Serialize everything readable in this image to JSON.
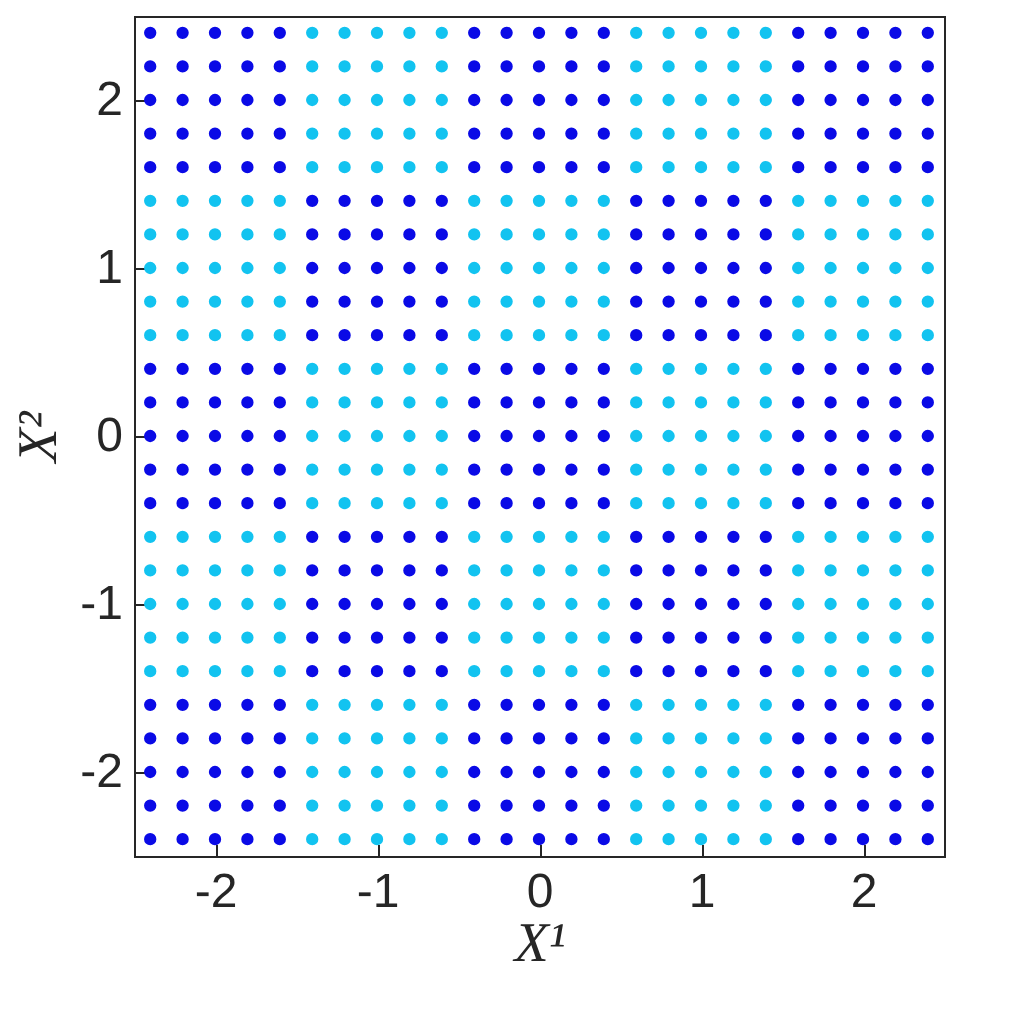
{
  "chart_data": {
    "type": "scatter",
    "xlabel": "X¹",
    "ylabel": "X²",
    "xlim": [
      -2.5,
      2.5
    ],
    "ylim": [
      -2.5,
      2.5
    ],
    "xticks": [
      -2,
      -1,
      0,
      1,
      2
    ],
    "yticks": [
      -2,
      -1,
      0,
      1,
      2
    ],
    "grid": false,
    "marker": "circle",
    "series": [
      {
        "color": "#0a0ae6",
        "x": [
          -2.4,
          -2.2,
          -2,
          -1.8,
          -1.6,
          -0.4,
          -0.2,
          0,
          0.2,
          0.4,
          1.6,
          1.8,
          2,
          2.2,
          2.4,
          -2.4,
          -2.2,
          -2,
          -1.8,
          -1.6,
          -0.4,
          -0.2,
          0,
          0.2,
          0.4,
          1.6,
          1.8,
          2,
          2.2,
          2.4,
          -2.4,
          -2.2,
          -2,
          -1.8,
          -1.6,
          -0.4,
          -0.2,
          0,
          0.2,
          0.4,
          1.6,
          1.8,
          2,
          2.2,
          2.4,
          -2.4,
          -2.2,
          -2,
          -1.8,
          -1.6,
          -0.4,
          -0.2,
          0,
          0.2,
          0.4,
          1.6,
          1.8,
          2,
          2.2,
          2.4,
          -2.4,
          -2.2,
          -2,
          -1.8,
          -1.6,
          -0.4,
          -0.2,
          0,
          0.2,
          0.4,
          1.6,
          1.8,
          2,
          2.2,
          2.4,
          -1.4,
          -1.2,
          -1,
          -0.8,
          -0.6,
          0.6,
          0.8,
          1,
          1.2,
          1.4,
          -1.4,
          -1.2,
          -1,
          -0.8,
          -0.6,
          0.6,
          0.8,
          1,
          1.2,
          1.4,
          -1.4,
          -1.2,
          -1,
          -0.8,
          -0.6,
          0.6,
          0.8,
          1,
          1.2,
          1.4,
          -1.4,
          -1.2,
          -1,
          -0.8,
          -0.6,
          0.6,
          0.8,
          1,
          1.2,
          1.4,
          -1.4,
          -1.2,
          -1,
          -0.8,
          -0.6,
          0.6,
          0.8,
          1,
          1.2,
          1.4,
          -2.4,
          -2.2,
          -2,
          -1.8,
          -1.6,
          -0.4,
          -0.2,
          0,
          0.2,
          0.4,
          1.6,
          1.8,
          2,
          2.2,
          2.4,
          -2.4,
          -2.2,
          -2,
          -1.8,
          -1.6,
          -0.4,
          -0.2,
          0,
          0.2,
          0.4,
          1.6,
          1.8,
          2,
          2.2,
          2.4,
          -2.4,
          -2.2,
          -2,
          -1.8,
          -1.6,
          -0.4,
          -0.2,
          0,
          0.2,
          0.4,
          1.6,
          1.8,
          2,
          2.2,
          2.4,
          -2.4,
          -2.2,
          -2,
          -1.8,
          -1.6,
          -0.4,
          -0.2,
          0,
          0.2,
          0.4,
          1.6,
          1.8,
          2,
          2.2,
          2.4,
          -2.4,
          -2.2,
          -2,
          -1.8,
          -1.6,
          -0.4,
          -0.2,
          0,
          0.2,
          0.4,
          1.6,
          1.8,
          2,
          2.2,
          2.4,
          -1.4,
          -1.2,
          -1,
          -0.8,
          -0.6,
          0.6,
          0.8,
          1,
          1.2,
          1.4,
          -1.4,
          -1.2,
          -1,
          -0.8,
          -0.6,
          0.6,
          0.8,
          1,
          1.2,
          1.4,
          -1.4,
          -1.2,
          -1,
          -0.8,
          -0.6,
          0.6,
          0.8,
          1,
          1.2,
          1.4,
          -1.4,
          -1.2,
          -1,
          -0.8,
          -0.6,
          0.6,
          0.8,
          1,
          1.2,
          1.4,
          -1.4,
          -1.2,
          -1,
          -0.8,
          -0.6,
          0.6,
          0.8,
          1,
          1.2,
          1.4,
          -2.4,
          -2.2,
          -2,
          -1.8,
          -1.6,
          -0.4,
          -0.2,
          0,
          0.2,
          0.4,
          1.6,
          1.8,
          2,
          2.2,
          2.4,
          -2.4,
          -2.2,
          -2,
          -1.8,
          -1.6,
          -0.4,
          -0.2,
          0,
          0.2,
          0.4,
          1.6,
          1.8,
          2,
          2.2,
          2.4,
          -2.4,
          -2.2,
          -2,
          -1.8,
          -1.6,
          -0.4,
          -0.2,
          0,
          0.2,
          0.4,
          1.6,
          1.8,
          2,
          2.2,
          2.4,
          -2.4,
          -2.2,
          -2,
          -1.8,
          -1.6,
          -0.4,
          -0.2,
          0,
          0.2,
          0.4,
          1.6,
          1.8,
          2,
          2.2,
          2.4,
          -2.4,
          -2.2,
          -2,
          -1.8,
          -1.6,
          -0.4,
          -0.2,
          0,
          0.2,
          0.4,
          1.6,
          1.8,
          2,
          2.2,
          2.4
        ],
        "values": [
          2.4,
          2.4,
          2.4,
          2.4,
          2.4,
          2.4,
          2.4,
          2.4,
          2.4,
          2.4,
          2.4,
          2.4,
          2.4,
          2.4,
          2.4,
          2.2,
          2.2,
          2.2,
          2.2,
          2.2,
          2.2,
          2.2,
          2.2,
          2.2,
          2.2,
          2.2,
          2.2,
          2.2,
          2.2,
          2.2,
          2,
          2,
          2,
          2,
          2,
          2,
          2,
          2,
          2,
          2,
          2,
          2,
          2,
          2,
          2,
          1.8,
          1.8,
          1.8,
          1.8,
          1.8,
          1.8,
          1.8,
          1.8,
          1.8,
          1.8,
          1.8,
          1.8,
          1.8,
          1.8,
          1.8,
          1.6,
          1.6,
          1.6,
          1.6,
          1.6,
          1.6,
          1.6,
          1.6,
          1.6,
          1.6,
          1.6,
          1.6,
          1.6,
          1.6,
          1.6,
          1.4,
          1.4,
          1.4,
          1.4,
          1.4,
          1.4,
          1.4,
          1.4,
          1.4,
          1.4,
          1.2,
          1.2,
          1.2,
          1.2,
          1.2,
          1.2,
          1.2,
          1.2,
          1.2,
          1.2,
          1,
          1,
          1,
          1,
          1,
          1,
          1,
          1,
          1,
          1,
          0.8,
          0.8,
          0.8,
          0.8,
          0.8,
          0.8,
          0.8,
          0.8,
          0.8,
          0.8,
          0.6,
          0.6,
          0.6,
          0.6,
          0.6,
          0.6,
          0.6,
          0.6,
          0.6,
          0.6,
          0.4,
          0.4,
          0.4,
          0.4,
          0.4,
          0.4,
          0.4,
          0.4,
          0.4,
          0.4,
          0.4,
          0.4,
          0.4,
          0.4,
          0.4,
          0.2,
          0.2,
          0.2,
          0.2,
          0.2,
          0.2,
          0.2,
          0.2,
          0.2,
          0.2,
          0.2,
          0.2,
          0.2,
          0.2,
          0.2,
          0,
          0,
          0,
          0,
          0,
          0,
          0,
          0,
          0,
          0,
          0,
          0,
          0,
          0,
          0,
          -0.2,
          -0.2,
          -0.2,
          -0.2,
          -0.2,
          -0.2,
          -0.2,
          -0.2,
          -0.2,
          -0.2,
          -0.2,
          -0.2,
          -0.2,
          -0.2,
          -0.2,
          -0.4,
          -0.4,
          -0.4,
          -0.4,
          -0.4,
          -0.4,
          -0.4,
          -0.4,
          -0.4,
          -0.4,
          -0.4,
          -0.4,
          -0.4,
          -0.4,
          -0.4,
          -0.6,
          -0.6,
          -0.6,
          -0.6,
          -0.6,
          -0.6,
          -0.6,
          -0.6,
          -0.6,
          -0.6,
          -0.8,
          -0.8,
          -0.8,
          -0.8,
          -0.8,
          -0.8,
          -0.8,
          -0.8,
          -0.8,
          -0.8,
          -1,
          -1,
          -1,
          -1,
          -1,
          -1,
          -1,
          -1,
          -1,
          -1,
          -1.2,
          -1.2,
          -1.2,
          -1.2,
          -1.2,
          -1.2,
          -1.2,
          -1.2,
          -1.2,
          -1.2,
          -1.4,
          -1.4,
          -1.4,
          -1.4,
          -1.4,
          -1.4,
          -1.4,
          -1.4,
          -1.4,
          -1.4,
          -1.6,
          -1.6,
          -1.6,
          -1.6,
          -1.6,
          -1.6,
          -1.6,
          -1.6,
          -1.6,
          -1.6,
          -1.6,
          -1.6,
          -1.6,
          -1.6,
          -1.6,
          -1.8,
          -1.8,
          -1.8,
          -1.8,
          -1.8,
          -1.8,
          -1.8,
          -1.8,
          -1.8,
          -1.8,
          -1.8,
          -1.8,
          -1.8,
          -1.8,
          -1.8,
          -2,
          -2,
          -2,
          -2,
          -2,
          -2,
          -2,
          -2,
          -2,
          -2,
          -2,
          -2,
          -2,
          -2,
          -2,
          -2.2,
          -2.2,
          -2.2,
          -2.2,
          -2.2,
          -2.2,
          -2.2,
          -2.2,
          -2.2,
          -2.2,
          -2.2,
          -2.2,
          -2.2,
          -2.2,
          -2.2,
          -2.4,
          -2.4,
          -2.4,
          -2.4,
          -2.4,
          -2.4,
          -2.4,
          -2.4,
          -2.4,
          -2.4,
          -2.4,
          -2.4,
          -2.4,
          -2.4,
          -2.4
        ]
      },
      {
        "color": "#12c3f0",
        "x": [
          -1.4,
          -1.2,
          -1,
          -0.8,
          -0.6,
          0.6,
          0.8,
          1,
          1.2,
          1.4,
          -1.4,
          -1.2,
          -1,
          -0.8,
          -0.6,
          0.6,
          0.8,
          1,
          1.2,
          1.4,
          -1.4,
          -1.2,
          -1,
          -0.8,
          -0.6,
          0.6,
          0.8,
          1,
          1.2,
          1.4,
          -1.4,
          -1.2,
          -1,
          -0.8,
          -0.6,
          0.6,
          0.8,
          1,
          1.2,
          1.4,
          -1.4,
          -1.2,
          -1,
          -0.8,
          -0.6,
          0.6,
          0.8,
          1,
          1.2,
          1.4,
          -2.4,
          -2.2,
          -2,
          -1.8,
          -1.6,
          -0.4,
          -0.2,
          0,
          0.2,
          0.4,
          1.6,
          1.8,
          2,
          2.2,
          2.4,
          -2.4,
          -2.2,
          -2,
          -1.8,
          -1.6,
          -0.4,
          -0.2,
          0,
          0.2,
          0.4,
          1.6,
          1.8,
          2,
          2.2,
          2.4,
          -2.4,
          -2.2,
          -2,
          -1.8,
          -1.6,
          -0.4,
          -0.2,
          0,
          0.2,
          0.4,
          1.6,
          1.8,
          2,
          2.2,
          2.4,
          -2.4,
          -2.2,
          -2,
          -1.8,
          -1.6,
          -0.4,
          -0.2,
          0,
          0.2,
          0.4,
          1.6,
          1.8,
          2,
          2.2,
          2.4,
          -2.4,
          -2.2,
          -2,
          -1.8,
          -1.6,
          -0.4,
          -0.2,
          0,
          0.2,
          0.4,
          1.6,
          1.8,
          2,
          2.2,
          2.4,
          -1.4,
          -1.2,
          -1,
          -0.8,
          -0.6,
          0.6,
          0.8,
          1,
          1.2,
          1.4,
          -1.4,
          -1.2,
          -1,
          -0.8,
          -0.6,
          0.6,
          0.8,
          1,
          1.2,
          1.4,
          -1.4,
          -1.2,
          -1,
          -0.8,
          -0.6,
          0.6,
          0.8,
          1,
          1.2,
          1.4,
          -1.4,
          -1.2,
          -1,
          -0.8,
          -0.6,
          0.6,
          0.8,
          1,
          1.2,
          1.4,
          -1.4,
          -1.2,
          -1,
          -0.8,
          -0.6,
          0.6,
          0.8,
          1,
          1.2,
          1.4,
          -2.4,
          -2.2,
          -2,
          -1.8,
          -1.6,
          -0.4,
          -0.2,
          0,
          0.2,
          0.4,
          1.6,
          1.8,
          2,
          2.2,
          2.4,
          -2.4,
          -2.2,
          -2,
          -1.8,
          -1.6,
          -0.4,
          -0.2,
          0,
          0.2,
          0.4,
          1.6,
          1.8,
          2,
          2.2,
          2.4,
          -2.4,
          -2.2,
          -2,
          -1.8,
          -1.6,
          -0.4,
          -0.2,
          0,
          0.2,
          0.4,
          1.6,
          1.8,
          2,
          2.2,
          2.4,
          -2.4,
          -2.2,
          -2,
          -1.8,
          -1.6,
          -0.4,
          -0.2,
          0,
          0.2,
          0.4,
          1.6,
          1.8,
          2,
          2.2,
          2.4,
          -2.4,
          -2.2,
          -2,
          -1.8,
          -1.6,
          -0.4,
          -0.2,
          0,
          0.2,
          0.4,
          1.6,
          1.8,
          2,
          2.2,
          2.4,
          -1.4,
          -1.2,
          -1,
          -0.8,
          -0.6,
          0.6,
          0.8,
          1,
          1.2,
          1.4,
          -1.4,
          -1.2,
          -1,
          -0.8,
          -0.6,
          0.6,
          0.8,
          1,
          1.2,
          1.4,
          -1.4,
          -1.2,
          -1,
          -0.8,
          -0.6,
          0.6,
          0.8,
          1,
          1.2,
          1.4,
          -1.4,
          -1.2,
          -1,
          -0.8,
          -0.6,
          0.6,
          0.8,
          1,
          1.2,
          1.4,
          -1.4,
          -1.2,
          -1,
          -0.8,
          -0.6,
          0.6,
          0.8,
          1,
          1.2,
          1.4
        ],
        "values": [
          2.4,
          2.4,
          2.4,
          2.4,
          2.4,
          2.4,
          2.4,
          2.4,
          2.4,
          2.4,
          2.2,
          2.2,
          2.2,
          2.2,
          2.2,
          2.2,
          2.2,
          2.2,
          2.2,
          2.2,
          2,
          2,
          2,
          2,
          2,
          2,
          2,
          2,
          2,
          2,
          1.8,
          1.8,
          1.8,
          1.8,
          1.8,
          1.8,
          1.8,
          1.8,
          1.8,
          1.8,
          1.6,
          1.6,
          1.6,
          1.6,
          1.6,
          1.6,
          1.6,
          1.6,
          1.6,
          1.6,
          1.4,
          1.4,
          1.4,
          1.4,
          1.4,
          1.4,
          1.4,
          1.4,
          1.4,
          1.4,
          1.4,
          1.4,
          1.4,
          1.4,
          1.4,
          1.2,
          1.2,
          1.2,
          1.2,
          1.2,
          1.2,
          1.2,
          1.2,
          1.2,
          1.2,
          1.2,
          1.2,
          1.2,
          1.2,
          1.2,
          1,
          1,
          1,
          1,
          1,
          1,
          1,
          1,
          1,
          1,
          1,
          1,
          1,
          1,
          1,
          0.8,
          0.8,
          0.8,
          0.8,
          0.8,
          0.8,
          0.8,
          0.8,
          0.8,
          0.8,
          0.8,
          0.8,
          0.8,
          0.8,
          0.8,
          0.6,
          0.6,
          0.6,
          0.6,
          0.6,
          0.6,
          0.6,
          0.6,
          0.6,
          0.6,
          0.6,
          0.6,
          0.6,
          0.6,
          0.6,
          0.4,
          0.4,
          0.4,
          0.4,
          0.4,
          0.4,
          0.4,
          0.4,
          0.4,
          0.4,
          0.2,
          0.2,
          0.2,
          0.2,
          0.2,
          0.2,
          0.2,
          0.2,
          0.2,
          0.2,
          0,
          0,
          0,
          0,
          0,
          0,
          0,
          0,
          0,
          0,
          -0.2,
          -0.2,
          -0.2,
          -0.2,
          -0.2,
          -0.2,
          -0.2,
          -0.2,
          -0.2,
          -0.2,
          -0.4,
          -0.4,
          -0.4,
          -0.4,
          -0.4,
          -0.4,
          -0.4,
          -0.4,
          -0.4,
          -0.4,
          -0.6,
          -0.6,
          -0.6,
          -0.6,
          -0.6,
          -0.6,
          -0.6,
          -0.6,
          -0.6,
          -0.6,
          -0.6,
          -0.6,
          -0.6,
          -0.6,
          -0.6,
          -0.8,
          -0.8,
          -0.8,
          -0.8,
          -0.8,
          -0.8,
          -0.8,
          -0.8,
          -0.8,
          -0.8,
          -0.8,
          -0.8,
          -0.8,
          -0.8,
          -0.8,
          -1,
          -1,
          -1,
          -1,
          -1,
          -1,
          -1,
          -1,
          -1,
          -1,
          -1,
          -1,
          -1,
          -1,
          -1,
          -1.2,
          -1.2,
          -1.2,
          -1.2,
          -1.2,
          -1.2,
          -1.2,
          -1.2,
          -1.2,
          -1.2,
          -1.2,
          -1.2,
          -1.2,
          -1.2,
          -1.2,
          -1.4,
          -1.4,
          -1.4,
          -1.4,
          -1.4,
          -1.4,
          -1.4,
          -1.4,
          -1.4,
          -1.4,
          -1.4,
          -1.4,
          -1.4,
          -1.4,
          -1.4,
          -1.6,
          -1.6,
          -1.6,
          -1.6,
          -1.6,
          -1.6,
          -1.6,
          -1.6,
          -1.6,
          -1.6,
          -1.8,
          -1.8,
          -1.8,
          -1.8,
          -1.8,
          -1.8,
          -1.8,
          -1.8,
          -1.8,
          -1.8,
          -2,
          -2,
          -2,
          -2,
          -2,
          -2,
          -2,
          -2,
          -2,
          -2,
          -2.2,
          -2.2,
          -2.2,
          -2.2,
          -2.2,
          -2.2,
          -2.2,
          -2.2,
          -2.2,
          -2.2,
          -2.4,
          -2.4,
          -2.4,
          -2.4,
          -2.4,
          -2.4,
          -2.4,
          -2.4,
          -2.4,
          -2.4
        ]
      }
    ]
  }
}
